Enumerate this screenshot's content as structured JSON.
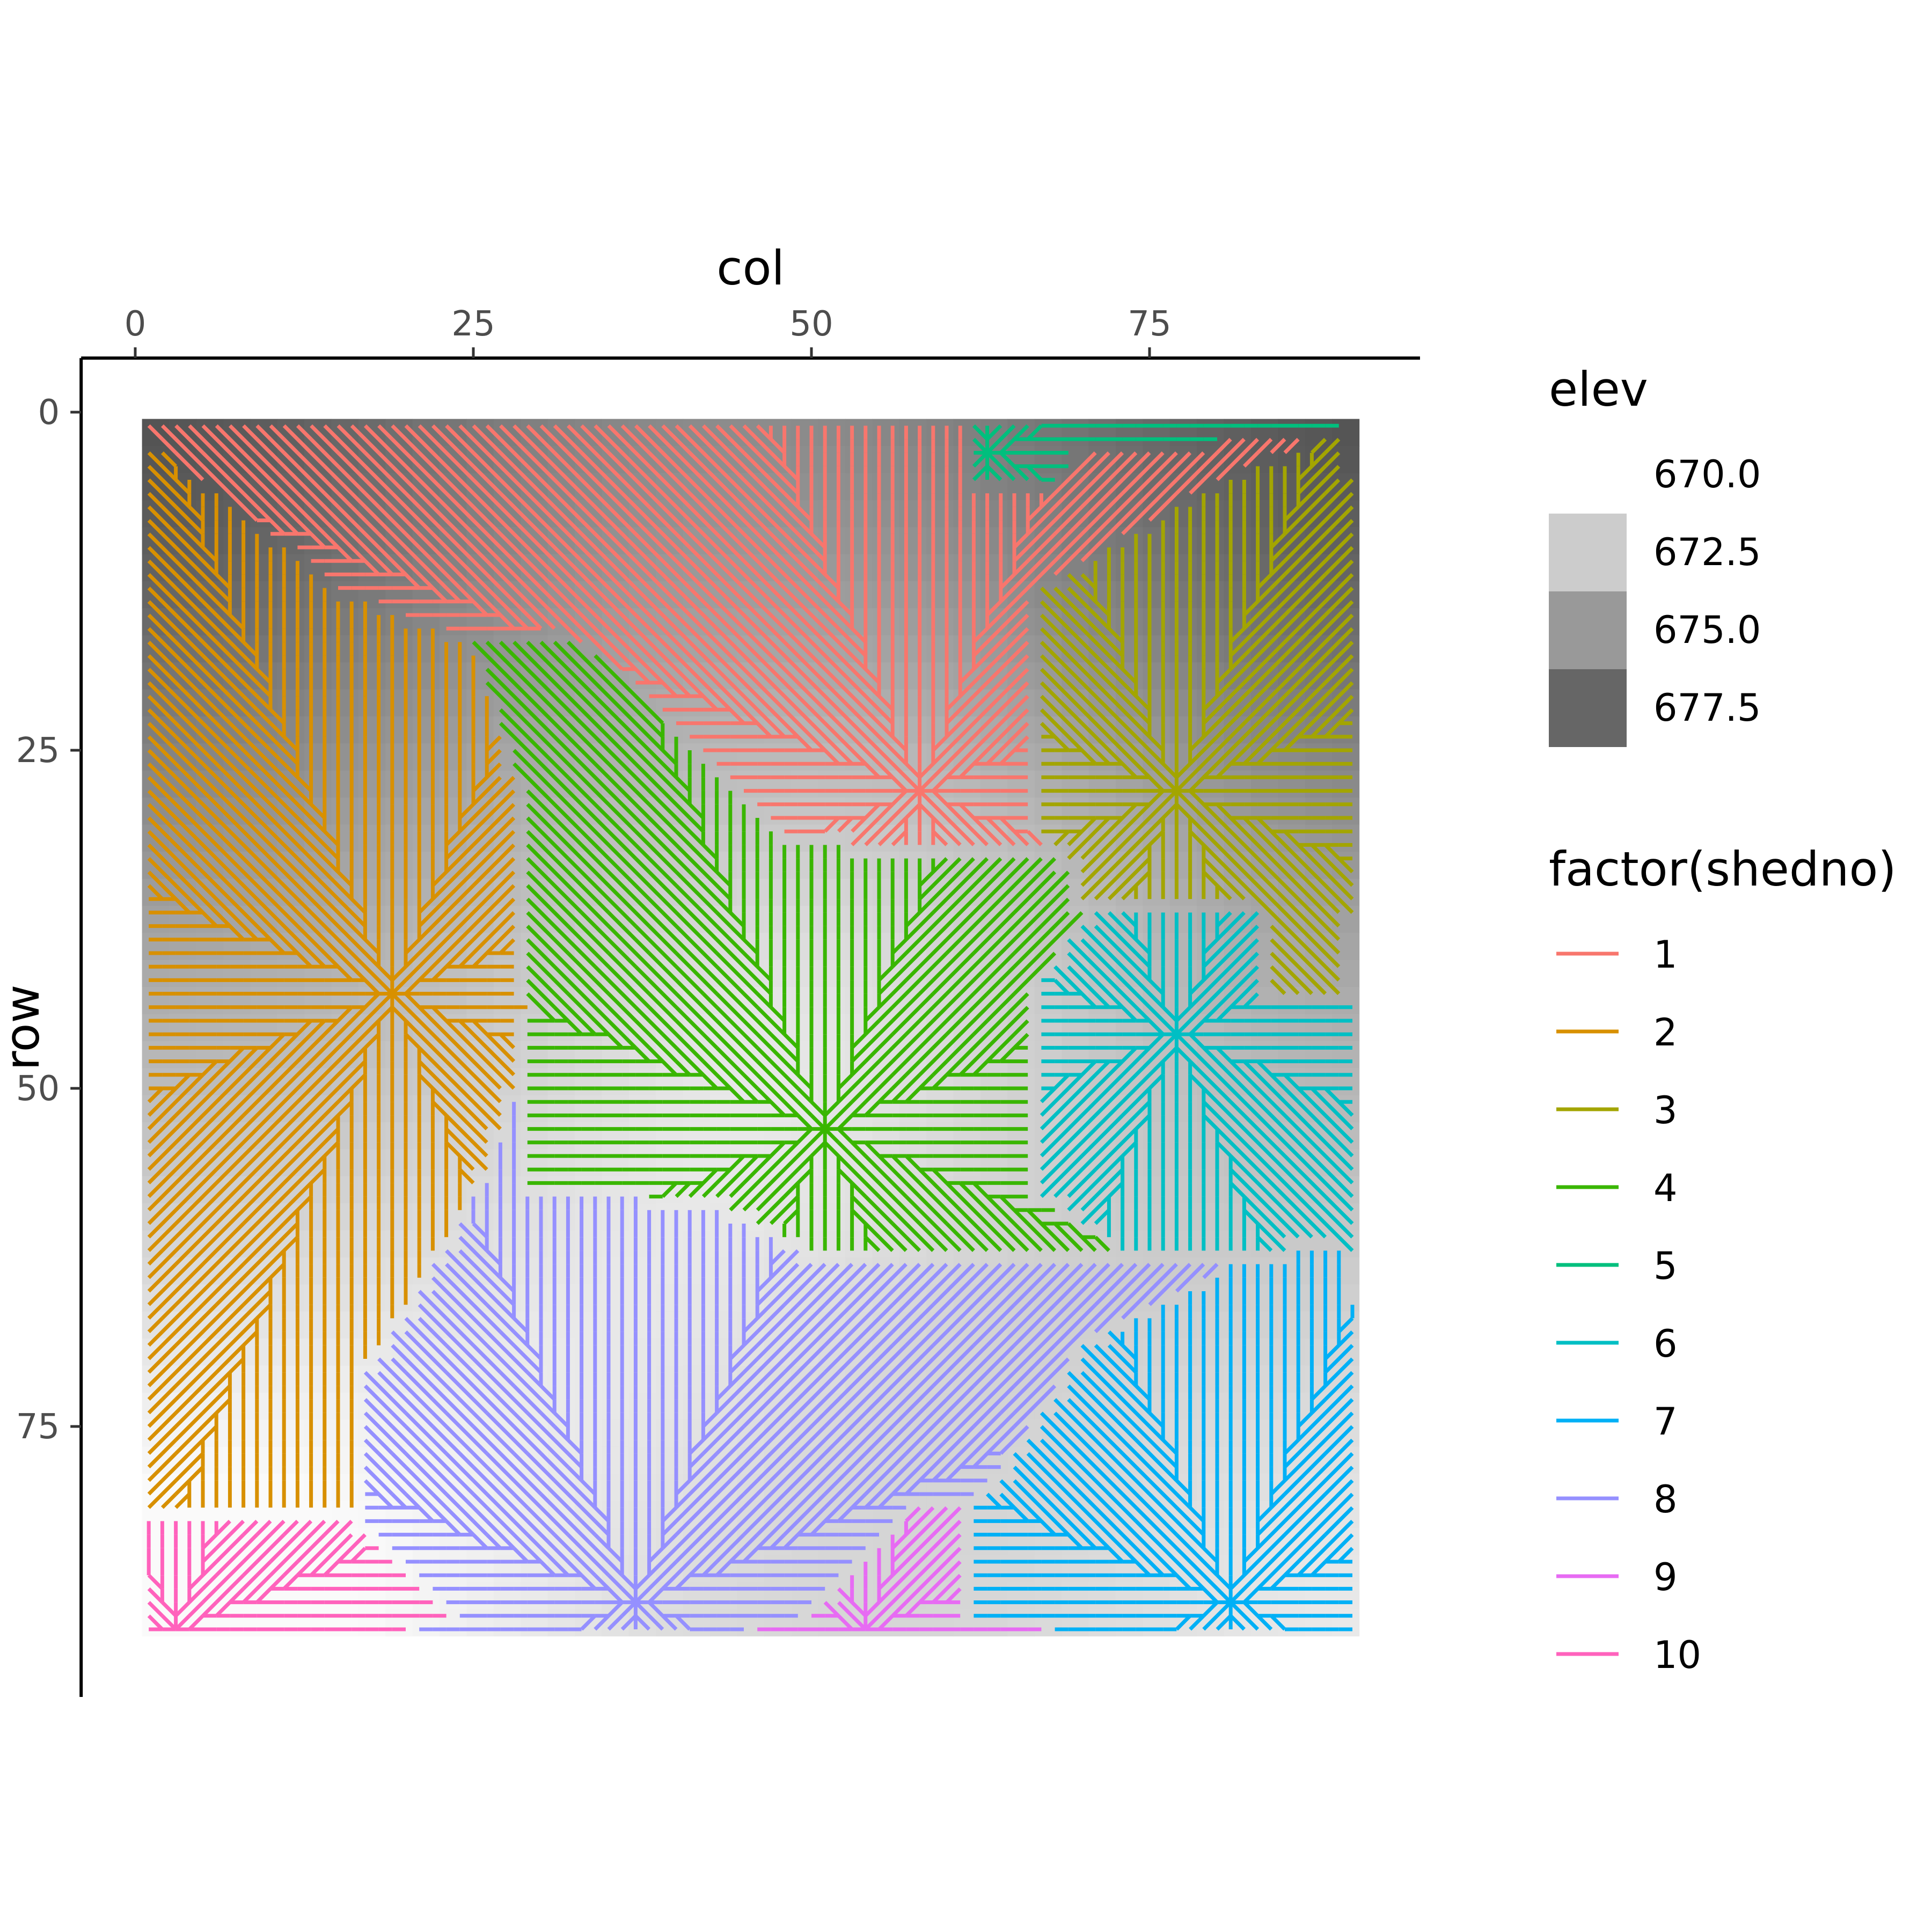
{
  "chart_data": {
    "type": "heatmap",
    "title": "",
    "xlabel": "col",
    "ylabel": "row",
    "x_axis_position": "top",
    "y_axis_reversed": true,
    "xlim": [
      -4,
      95
    ],
    "ylim": [
      -4,
      95
    ],
    "x_ticks": [
      0,
      25,
      50,
      75
    ],
    "y_ticks": [
      0,
      25,
      50,
      75
    ],
    "raster_extent": {
      "x": [
        0.5,
        90.5
      ],
      "y": [
        0.5,
        90.5
      ]
    },
    "grid": false,
    "fill_legend": {
      "title": "elev",
      "entries": [
        {
          "label": "670.0",
          "color": "#ffffff"
        },
        {
          "label": "672.5",
          "color": "#cccccc"
        },
        {
          "label": "675.0",
          "color": "#999999"
        },
        {
          "label": "677.5",
          "color": "#666666"
        }
      ]
    },
    "color_legend": {
      "title": "factor(shedno)",
      "placement": "right",
      "entries": [
        {
          "label": "1",
          "color": "#F8766D"
        },
        {
          "label": "2",
          "color": "#D89000"
        },
        {
          "label": "3",
          "color": "#A3A500"
        },
        {
          "label": "4",
          "color": "#39B600"
        },
        {
          "label": "5",
          "color": "#00BF7D"
        },
        {
          "label": "6",
          "color": "#00BFC4"
        },
        {
          "label": "7",
          "color": "#00B0F6"
        },
        {
          "label": "8",
          "color": "#9590FF"
        },
        {
          "label": "9",
          "color": "#E76BF3"
        },
        {
          "label": "10",
          "color": "#FF62BC"
        }
      ]
    },
    "elevation_field": {
      "description_values": [
        {
          "col": 1,
          "row": 1,
          "elev": 678.5
        },
        {
          "col": 90,
          "row": 1,
          "elev": 678.5
        },
        {
          "col": 45,
          "row": 45,
          "elev": 672.5
        },
        {
          "col": 1,
          "row": 90,
          "elev": 670.0
        },
        {
          "col": 90,
          "row": 90,
          "elev": 671.0
        }
      ]
    },
    "watersheds": [
      {
        "shedno": 1,
        "outlet": [
          58,
          28
        ],
        "polygon": [
          [
            1,
            1
          ],
          [
            62,
            1
          ],
          [
            62,
            6
          ],
          [
            67,
            6
          ],
          [
            70,
            3
          ],
          [
            90,
            1
          ],
          [
            80,
            5
          ],
          [
            67,
            13
          ],
          [
            67,
            22
          ],
          [
            67,
            32
          ],
          [
            57,
            33
          ],
          [
            48,
            31
          ],
          [
            40,
            23
          ],
          [
            33,
            17
          ],
          [
            25,
            17
          ],
          [
            15,
            13
          ],
          [
            1,
            2
          ]
        ]
      },
      {
        "shedno": 2,
        "outlet": [
          19,
          43
        ],
        "polygon": [
          [
            1,
            2
          ],
          [
            15,
            13
          ],
          [
            25,
            17
          ],
          [
            29,
            30
          ],
          [
            29,
            44
          ],
          [
            26,
            56
          ],
          [
            17,
            71
          ],
          [
            17,
            82
          ],
          [
            1,
            82
          ]
        ]
      },
      {
        "shedno": 3,
        "outlet": [
          77,
          28
        ],
        "polygon": [
          [
            80,
            5
          ],
          [
            90,
            1
          ],
          [
            90,
            44
          ],
          [
            84,
            44
          ],
          [
            84,
            37
          ],
          [
            70,
            37
          ],
          [
            70,
            34
          ],
          [
            67,
            32
          ],
          [
            67,
            22
          ],
          [
            67,
            13
          ]
        ]
      },
      {
        "shedno": 4,
        "outlet": [
          51,
          53
        ],
        "polygon": [
          [
            15,
            13
          ],
          [
            25,
            17
          ],
          [
            33,
            17
          ],
          [
            40,
            23
          ],
          [
            48,
            31
          ],
          [
            57,
            33
          ],
          [
            67,
            32
          ],
          [
            70,
            34
          ],
          [
            70,
            37
          ],
          [
            67,
            42
          ],
          [
            67,
            58
          ],
          [
            74,
            63
          ],
          [
            64,
            63
          ],
          [
            52,
            63
          ],
          [
            44,
            59
          ],
          [
            38,
            58
          ],
          [
            29,
            58
          ],
          [
            29,
            44
          ],
          [
            29,
            30
          ],
          [
            25,
            17
          ]
        ]
      },
      {
        "shedno": 5,
        "outlet": [
          63,
          3
        ],
        "polygon": [
          [
            55,
            1
          ],
          [
            73,
            1
          ],
          [
            68,
            5
          ],
          [
            62,
            6
          ],
          [
            55,
            4
          ]
        ]
      },
      {
        "shedno": 6,
        "outlet": [
          77,
          46
        ],
        "polygon": [
          [
            70,
            37
          ],
          [
            84,
            37
          ],
          [
            84,
            44
          ],
          [
            90,
            44
          ],
          [
            90,
            61
          ],
          [
            70,
            61
          ],
          [
            67,
            58
          ],
          [
            67,
            42
          ]
        ]
      },
      {
        "shedno": 7,
        "outlet": [
          81,
          88
        ],
        "polygon": [
          [
            90,
            61
          ],
          [
            90,
            90
          ],
          [
            62,
            90
          ],
          [
            62,
            81
          ],
          [
            70,
            69
          ],
          [
            81,
            63
          ]
        ]
      },
      {
        "shedno": 8,
        "outlet": [
          37,
          88
        ],
        "polygon": [
          [
            29,
            48
          ],
          [
            29,
            58
          ],
          [
            38,
            58
          ],
          [
            44,
            59
          ],
          [
            52,
            63
          ],
          [
            64,
            63
          ],
          [
            81,
            63
          ],
          [
            70,
            69
          ],
          [
            62,
            81
          ],
          [
            57,
            81
          ],
          [
            48,
            90
          ],
          [
            25,
            90
          ],
          [
            17,
            82
          ],
          [
            17,
            71
          ],
          [
            26,
            56
          ]
        ]
      },
      {
        "shedno": 9,
        "outlet": [
          54,
          90
        ],
        "polygon": [
          [
            48,
            90
          ],
          [
            57,
            81
          ],
          [
            62,
            81
          ],
          [
            62,
            90
          ]
        ]
      },
      {
        "shedno": 10,
        "outlet": [
          3,
          90
        ],
        "polygon": [
          [
            1,
            82
          ],
          [
            17,
            82
          ],
          [
            25,
            90
          ],
          [
            1,
            90
          ]
        ]
      }
    ]
  }
}
